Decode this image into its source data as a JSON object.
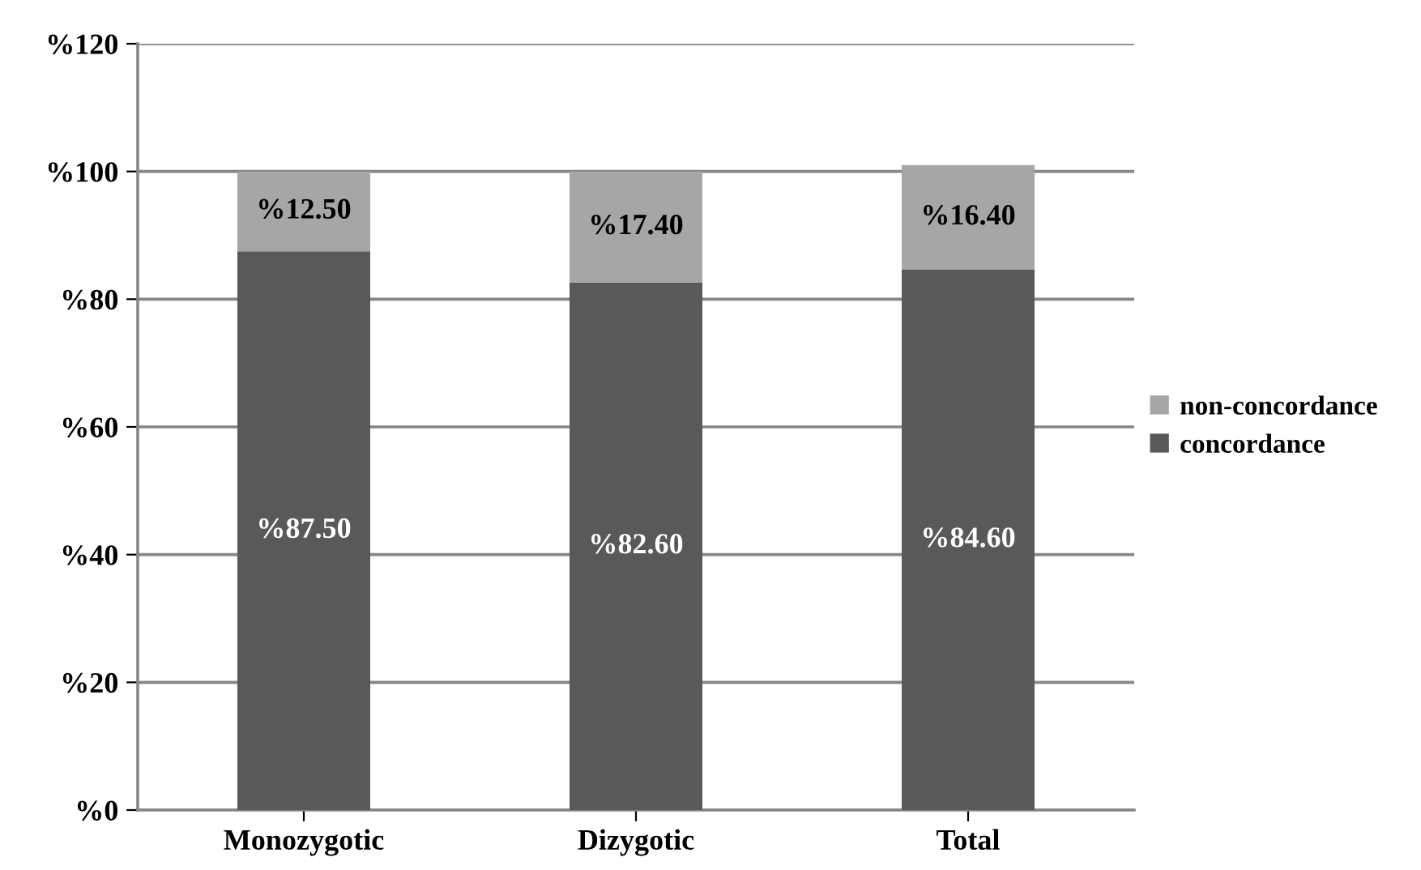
{
  "chart_data": {
    "type": "bar",
    "stacked": true,
    "categories": [
      "Monozygotic",
      "Dizygotic",
      "Total"
    ],
    "series": [
      {
        "name": "concordance",
        "color": "#595959",
        "values": [
          87.5,
          82.6,
          84.6
        ],
        "value_labels": [
          "%87.50",
          "%82.60",
          "%84.60"
        ]
      },
      {
        "name": "non-concordance",
        "color": "#a6a6a6",
        "values": [
          12.5,
          17.4,
          16.4
        ],
        "value_labels": [
          "%12.50",
          "%17.40",
          "%16.40"
        ]
      }
    ],
    "ylim": [
      0,
      120
    ],
    "yticks": [
      {
        "value": 0,
        "label": "%0"
      },
      {
        "value": 20,
        "label": "%20"
      },
      {
        "value": 40,
        "label": "%40"
      },
      {
        "value": 60,
        "label": "%60"
      },
      {
        "value": 80,
        "label": "%80"
      },
      {
        "value": 100,
        "label": "%100"
      },
      {
        "value": 120,
        "label": "%120"
      }
    ],
    "grid": "y",
    "legend": "right"
  }
}
